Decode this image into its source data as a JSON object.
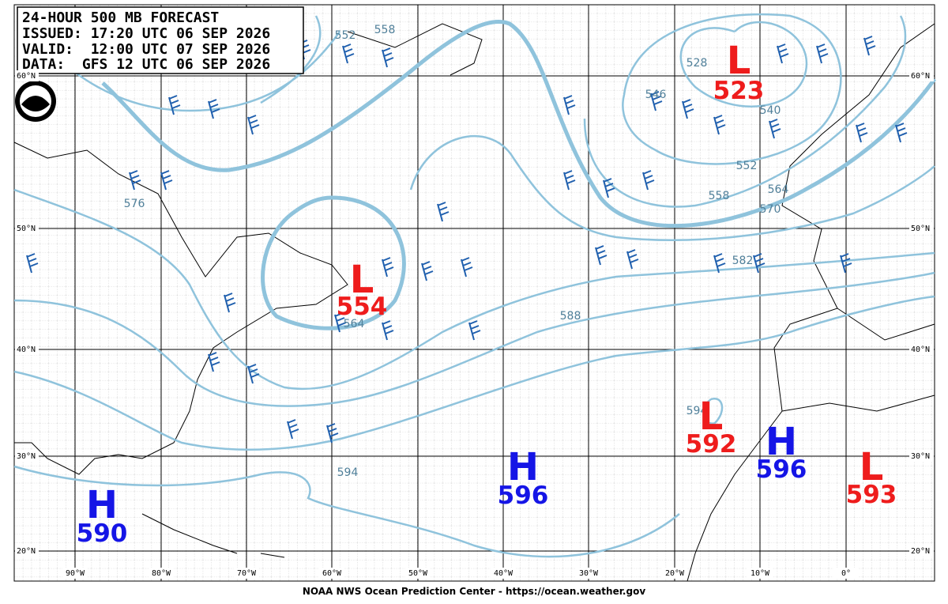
{
  "header": {
    "lines": [
      "24-HOUR 500 MB FORECAST",
      "ISSUED: 17:20 UTC 06 SEP 2026",
      "VALID:  12:00 UTC 07 SEP 2026",
      "DATA:  GFS 12 UTC 06 SEP 2026"
    ]
  },
  "centers": [
    {
      "type": "L",
      "value": 523,
      "color": "#ee1c1c"
    },
    {
      "type": "L",
      "value": 554,
      "color": "#ee1c1c"
    },
    {
      "type": "L",
      "value": 592,
      "color": "#ee1c1c"
    },
    {
      "type": "H",
      "value": 596,
      "color": "#1515e6"
    },
    {
      "type": "H",
      "value": 596,
      "color": "#1515e6"
    },
    {
      "type": "L",
      "value": 593,
      "color": "#ee1c1c"
    },
    {
      "type": "H",
      "value": 590,
      "color": "#1515e6"
    }
  ],
  "contour_labels": [
    "552",
    "558",
    "546",
    "528",
    "540",
    "552",
    "558",
    "564",
    "570",
    "576",
    "582",
    "588",
    "594",
    "564",
    "594"
  ],
  "latitude_labels": [
    "60°N",
    "50°N",
    "40°N",
    "30°N",
    "20°N"
  ],
  "longitude_labels": [
    "90°W",
    "80°W",
    "70°W",
    "60°W",
    "50°W",
    "40°W",
    "30°W",
    "20°W",
    "10°W",
    "0°"
  ],
  "footer": "NOAA NWS Ocean Prediction Center - https://ocean.weather.gov"
}
